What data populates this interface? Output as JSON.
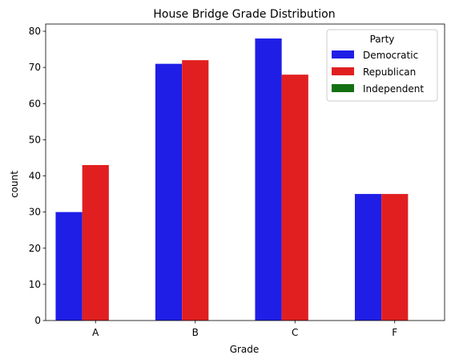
{
  "chart_data": {
    "type": "bar",
    "title": "House Bridge Grade Distribution",
    "xlabel": "Grade",
    "ylabel": "count",
    "categories": [
      "A",
      "B",
      "C",
      "F"
    ],
    "series": [
      {
        "name": "Democratic",
        "color": "#1f1ee6",
        "values": [
          30,
          71,
          78,
          35
        ]
      },
      {
        "name": "Republican",
        "color": "#e11f20",
        "values": [
          43,
          72,
          68,
          35
        ]
      },
      {
        "name": "Independent",
        "color": "#137012",
        "values": [
          0,
          0,
          0,
          0
        ]
      }
    ],
    "ylim": [
      0,
      82
    ],
    "yticks": [
      0,
      10,
      20,
      30,
      40,
      50,
      60,
      70,
      80
    ],
    "grid": false,
    "legend": {
      "title": "Party",
      "placement": "top-right"
    }
  }
}
